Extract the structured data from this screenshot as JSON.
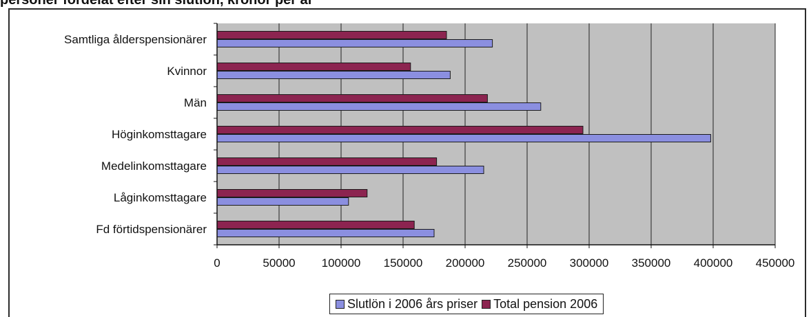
{
  "page": {
    "title_fragment": "personer fördelat efter sin slutlön, kronor per år"
  },
  "chart_data": {
    "type": "bar",
    "orientation": "horizontal",
    "categories": [
      "Samtliga ålderspensionärer",
      "Kvinnor",
      "Män",
      "Höginkomsttagare",
      "Medelinkomsttagare",
      "Låginkomsttagare",
      "Fd förtidspensionärer"
    ],
    "series": [
      {
        "name": "Slutlön i 2006 års priser",
        "color": "#8b8fe0",
        "values": [
          222000,
          188000,
          261000,
          398000,
          215000,
          106000,
          175000
        ]
      },
      {
        "name": "Total pension 2006",
        "color": "#8c2450",
        "values": [
          185000,
          156000,
          218000,
          295000,
          177000,
          121000,
          159000
        ]
      }
    ],
    "xlim": [
      0,
      450000
    ],
    "ticks": [
      "0",
      "50000",
      "100000",
      "150000",
      "200000",
      "250000",
      "300000",
      "350000",
      "400000",
      "450000"
    ],
    "xlabel": "",
    "ylabel": "",
    "grid": "vertical",
    "legend_position": "bottom",
    "plot_background": "#c0c0c0"
  }
}
